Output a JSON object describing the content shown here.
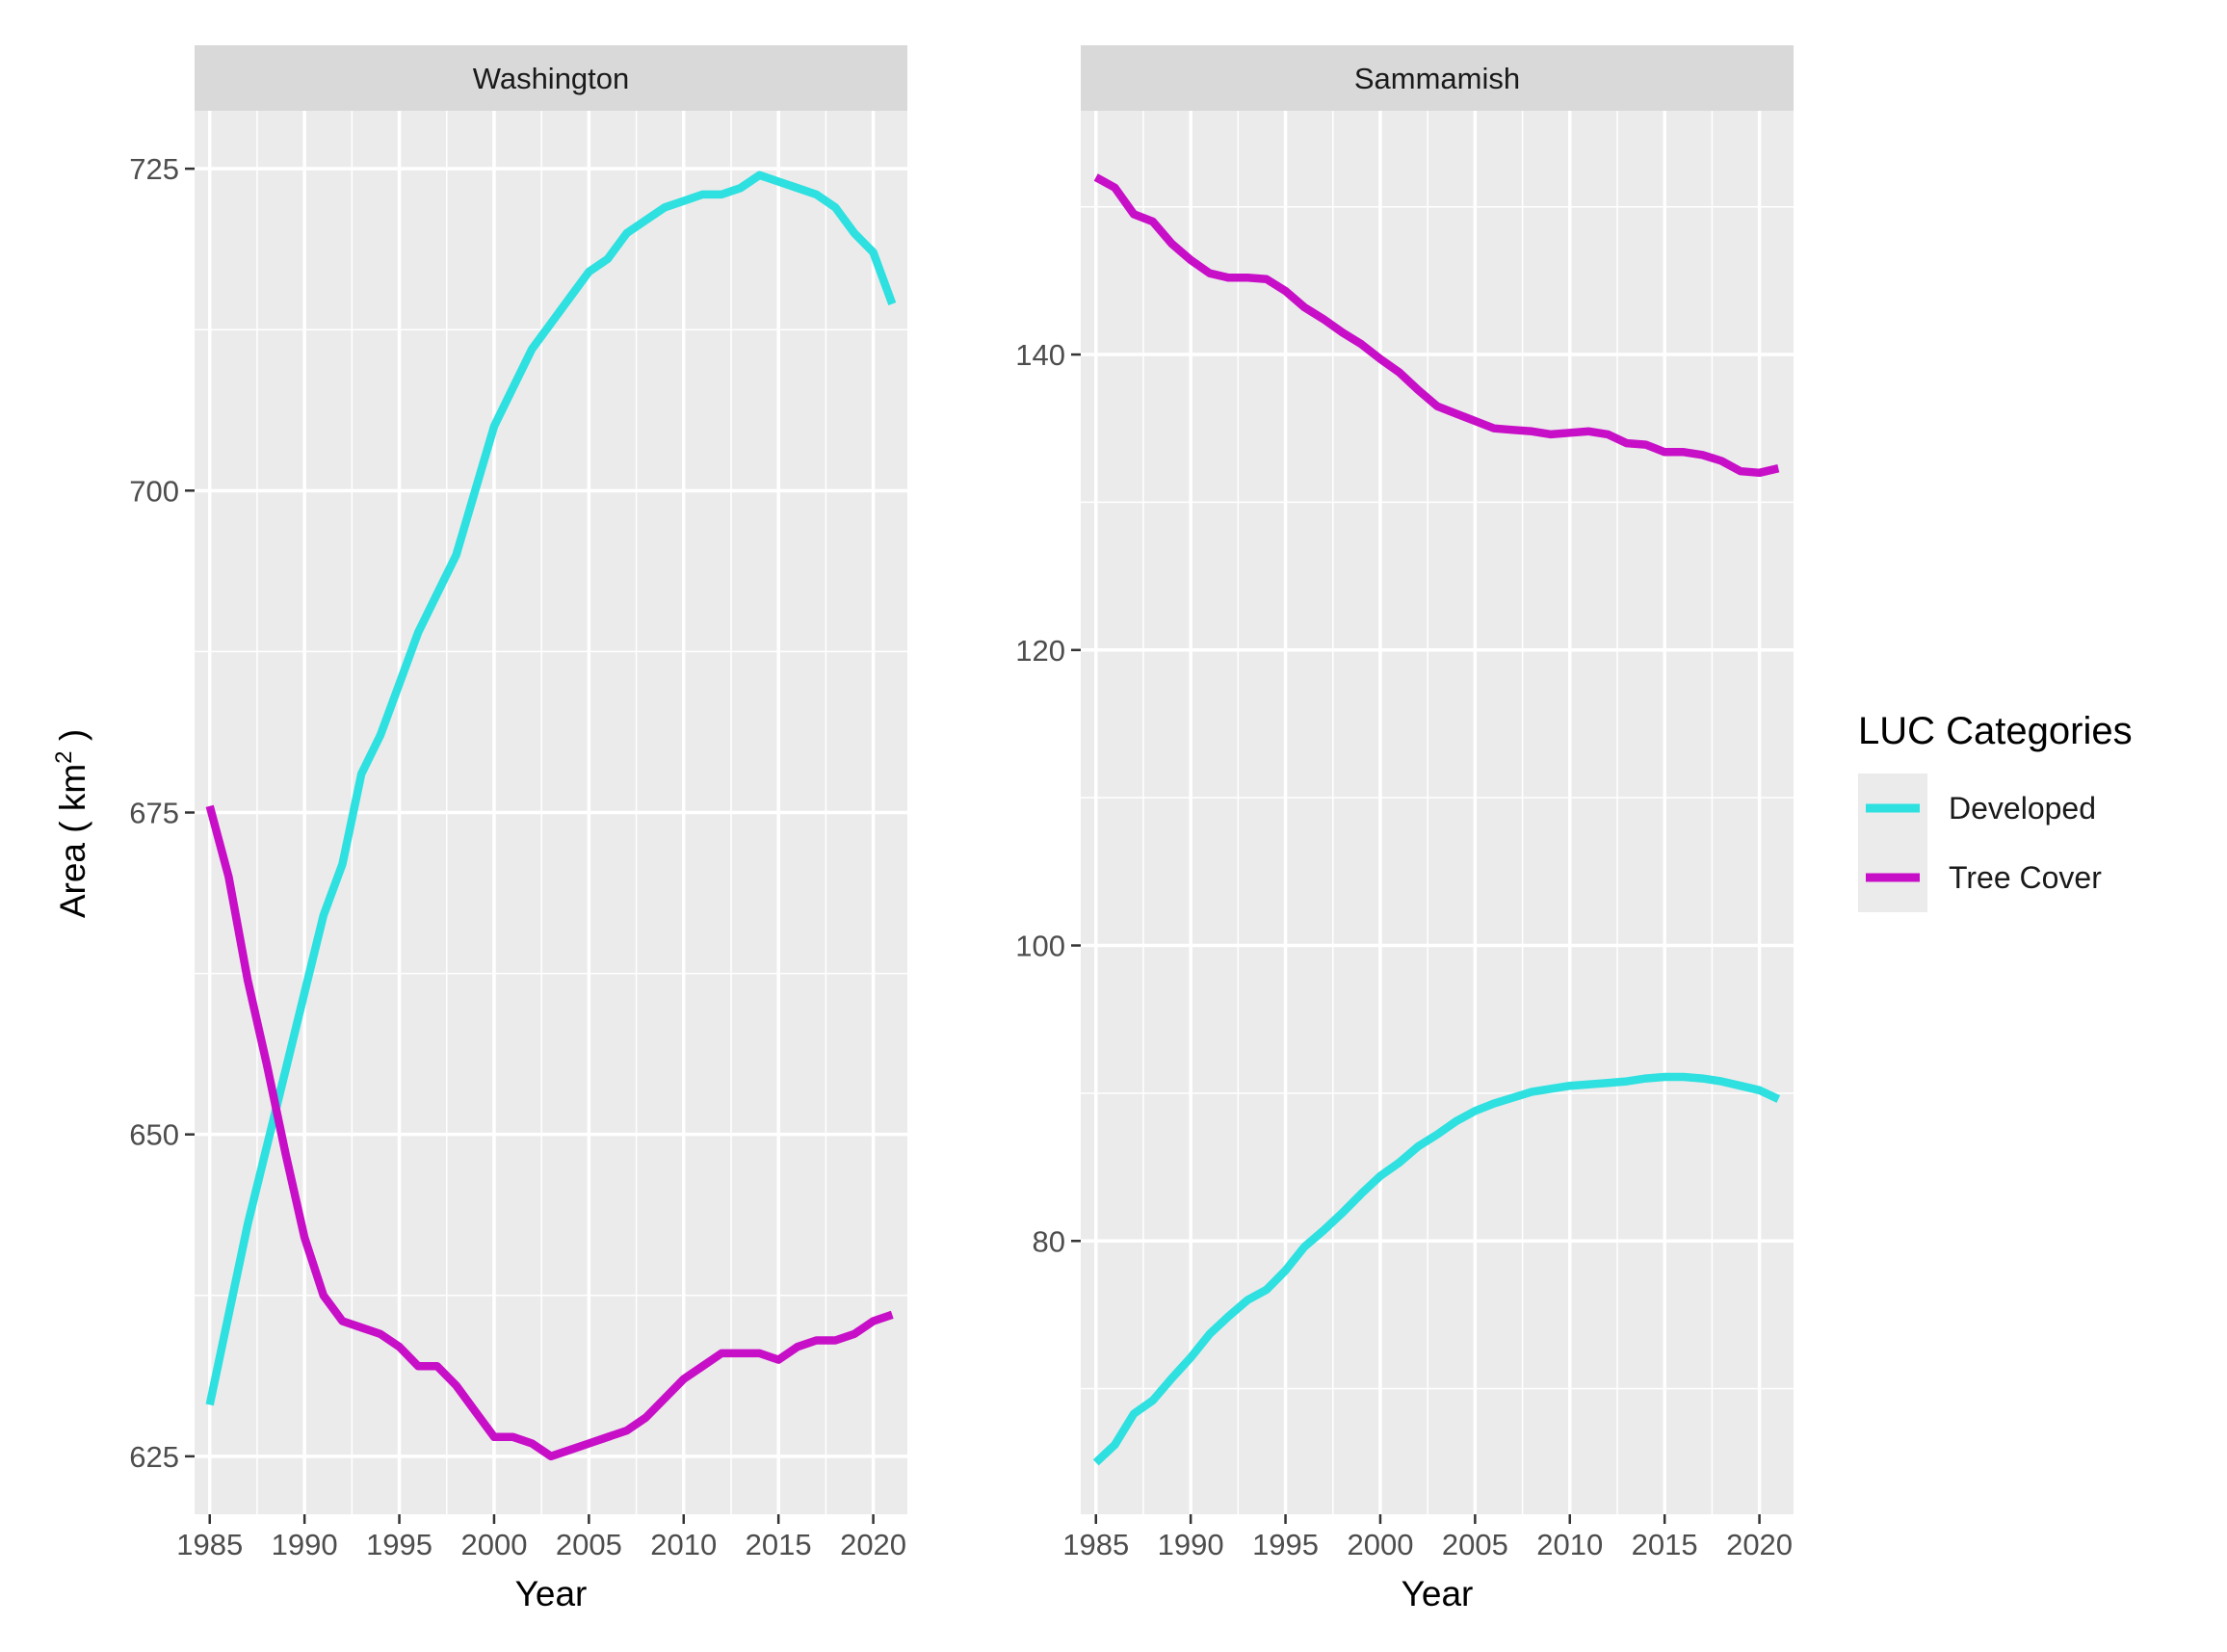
{
  "chart_data": {
    "type": "line",
    "xlabel": "Year",
    "ylabel_main": "Area ( km",
    "ylabel_sup": "2",
    "ylabel_close": " )",
    "x_ticks": [
      1985,
      1990,
      1995,
      2000,
      2005,
      2010,
      2015,
      2020
    ],
    "grid": true,
    "legend": {
      "title": "LUC Categories",
      "position": "right",
      "entries": [
        {
          "name": "Developed",
          "color": "#2ee0e0"
        },
        {
          "name": "Tree Cover",
          "color": "#c80fc8"
        }
      ]
    },
    "years": [
      1985,
      1986,
      1987,
      1988,
      1989,
      1990,
      1991,
      1992,
      1993,
      1994,
      1995,
      1996,
      1997,
      1998,
      1999,
      2000,
      2001,
      2002,
      2003,
      2004,
      2005,
      2006,
      2007,
      2008,
      2009,
      2010,
      2011,
      2012,
      2013,
      2014,
      2015,
      2016,
      2017,
      2018,
      2019,
      2020,
      2021
    ],
    "panels": [
      {
        "title": "Washington",
        "xlim": [
          1984.2,
          2021.8
        ],
        "ylim": [
          620.5,
          729.5
        ],
        "y_ticks": [
          625,
          650,
          675,
          700,
          725
        ],
        "y_minor": [
          637.5,
          662.5,
          687.5,
          712.5
        ],
        "series": [
          {
            "name": "Developed",
            "color": "#2ee0e0",
            "values": [
              629,
              636,
              643,
              649,
              655,
              661,
              667,
              671,
              678,
              681,
              685,
              689,
              692,
              695,
              700,
              705,
              708,
              711,
              713,
              715,
              717,
              718,
              720,
              721,
              722,
              722.5,
              723,
              723,
              723.5,
              724.5,
              724,
              723.5,
              723,
              722,
              720,
              718.5,
              714.5
            ]
          },
          {
            "name": "Tree Cover",
            "color": "#c80fc8",
            "values": [
              675.5,
              670,
              662,
              655.5,
              648.5,
              642,
              637.5,
              635.5,
              635,
              634.5,
              633.5,
              632,
              632,
              630.5,
              628.5,
              626.5,
              626.5,
              626,
              625,
              625.5,
              626,
              626.5,
              627,
              628,
              629.5,
              631,
              632,
              633,
              633,
              633,
              632.5,
              633.5,
              634,
              634,
              634.5,
              635.5,
              636
            ]
          }
        ]
      },
      {
        "title": "Sammamish",
        "xlim": [
          1984.2,
          2021.8
        ],
        "ylim": [
          61.5,
          156.5
        ],
        "y_ticks": [
          80,
          100,
          120,
          140
        ],
        "y_minor": [
          70,
          90,
          110,
          130,
          150
        ],
        "series": [
          {
            "name": "Developed",
            "color": "#2ee0e0",
            "values": [
              65,
              66.2,
              68.3,
              69.2,
              70.7,
              72.1,
              73.7,
              74.9,
              76,
              76.7,
              78,
              79.6,
              80.7,
              81.9,
              83.2,
              84.4,
              85.3,
              86.4,
              87.2,
              88.1,
              88.8,
              89.3,
              89.7,
              90.1,
              90.3,
              90.5,
              90.6,
              90.7,
              90.8,
              91,
              91.1,
              91.1,
              91,
              90.8,
              90.5,
              90.2,
              89.6
            ]
          },
          {
            "name": "Tree Cover",
            "color": "#c80fc8",
            "values": [
              152,
              151.3,
              149.5,
              149,
              147.5,
              146.4,
              145.5,
              145.2,
              145.2,
              145.1,
              144.3,
              143.2,
              142.4,
              141.5,
              140.7,
              139.7,
              138.8,
              137.6,
              136.5,
              136,
              135.5,
              135,
              134.9,
              134.8,
              134.6,
              134.7,
              134.8,
              134.6,
              134,
              133.9,
              133.4,
              133.4,
              133.2,
              132.8,
              132.1,
              132,
              132.3
            ]
          }
        ]
      }
    ]
  }
}
